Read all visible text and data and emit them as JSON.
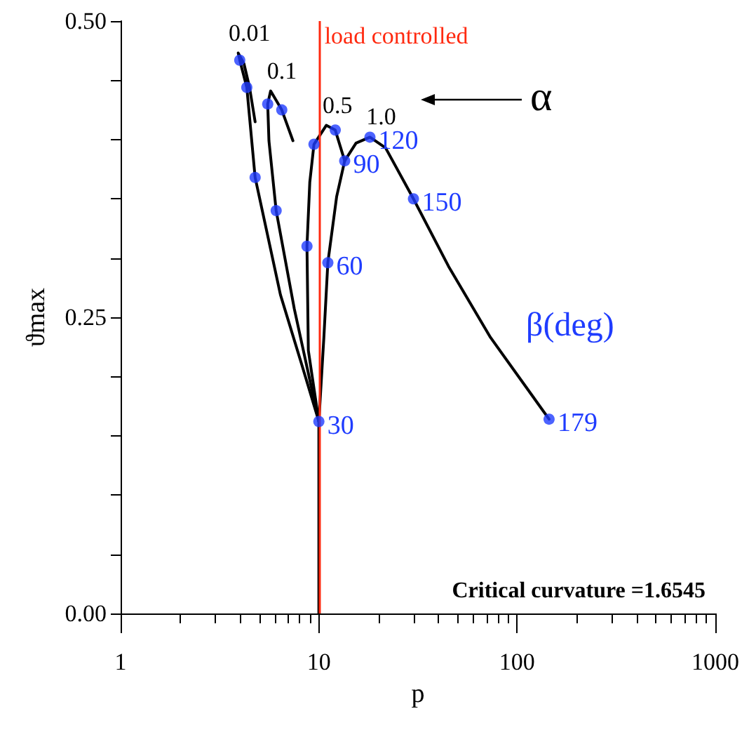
{
  "chart_data": {
    "type": "line",
    "xlabel": "p",
    "ylabel": "ϑmax",
    "log": "x",
    "grid": false,
    "xlim": [
      1,
      1000
    ],
    "xticks": [
      1,
      10,
      100,
      1000
    ],
    "ylim": [
      0,
      0.5
    ],
    "yticks": [
      {
        "value": 0,
        "label": "0.00"
      },
      {
        "value": 0.05,
        "label": null
      },
      {
        "value": 0.1,
        "label": null
      },
      {
        "value": 0.15,
        "label": null
      },
      {
        "value": 0.2,
        "label": null
      },
      {
        "value": 0.25,
        "label": "0.25"
      },
      {
        "value": 0.3,
        "label": null
      },
      {
        "value": 0.35,
        "label": null
      },
      {
        "value": 0.4,
        "label": null
      },
      {
        "value": 0.45,
        "label": null
      },
      {
        "value": 0.5,
        "label": "0.50"
      }
    ],
    "series": [
      {
        "name": "0.01",
        "color": "#000000",
        "marker": "none",
        "x": [
          10,
          8.2,
          6.4,
          4.77,
          4.33,
          3.99,
          3.92,
          4.19,
          4.47,
          4.77
        ],
        "values": [
          0.162,
          0.21,
          0.269,
          0.368,
          0.444,
          0.467,
          0.473,
          0.464,
          0.444,
          0.415
        ]
      },
      {
        "name": "0.1",
        "color": "#000000",
        "marker": "none",
        "x": [
          10,
          7.52,
          6.09,
          5.6,
          5.52,
          5.71,
          6.5,
          7.4
        ],
        "values": [
          0.162,
          0.257,
          0.34,
          0.399,
          0.43,
          0.441,
          0.425,
          0.399
        ]
      },
      {
        "name": "0.5",
        "color": "#000000",
        "marker": "none",
        "x": [
          10,
          8.85,
          8.71,
          9.0,
          9.45,
          10.9,
          12.1,
          13.5
        ],
        "values": [
          0.162,
          0.222,
          0.31,
          0.364,
          0.396,
          0.412,
          0.408,
          0.382
        ]
      },
      {
        "name": "1.0",
        "color": "#000000",
        "marker": "none",
        "x": [
          10,
          10,
          10.6,
          11.1,
          12.3,
          13.5,
          15.4,
          18.1,
          21.7,
          30,
          45.1,
          73.4,
          145
        ],
        "values": [
          0,
          0.162,
          0.233,
          0.296,
          0.352,
          0.382,
          0.397,
          0.402,
          0.393,
          0.35,
          0.293,
          0.233,
          0.164
        ]
      },
      {
        "type": "scatter",
        "color": "#1f3cff",
        "marker": "circle",
        "x": [
          10,
          11.1,
          13.5,
          18.1,
          30,
          145,
          3.99,
          4.33,
          4.77,
          5.52,
          6.5,
          6.09,
          8.71,
          9.45,
          12.1
        ],
        "values": [
          0.162,
          0.296,
          0.382,
          0.402,
          0.35,
          0.164,
          0.467,
          0.444,
          0.368,
          0.43,
          0.425,
          0.34,
          0.31,
          0.396,
          0.408
        ]
      }
    ],
    "ref_lines": [
      {
        "axis": "x",
        "value": 10,
        "label": "load controlled",
        "color": "#ff2a10"
      }
    ],
    "annotations": [
      "α",
      "β(deg)",
      "Critical curvature =1.6545",
      {
        "text": "30",
        "x": 10,
        "y": 0.162
      },
      {
        "text": "60",
        "x": 11.1,
        "y": 0.296
      },
      {
        "text": "90",
        "x": 13.5,
        "y": 0.382
      },
      {
        "text": "120",
        "x": 18.1,
        "y": 0.402
      },
      {
        "text": "150",
        "x": 30,
        "y": 0.35
      },
      {
        "text": "179",
        "x": 145,
        "y": 0.164
      }
    ]
  }
}
